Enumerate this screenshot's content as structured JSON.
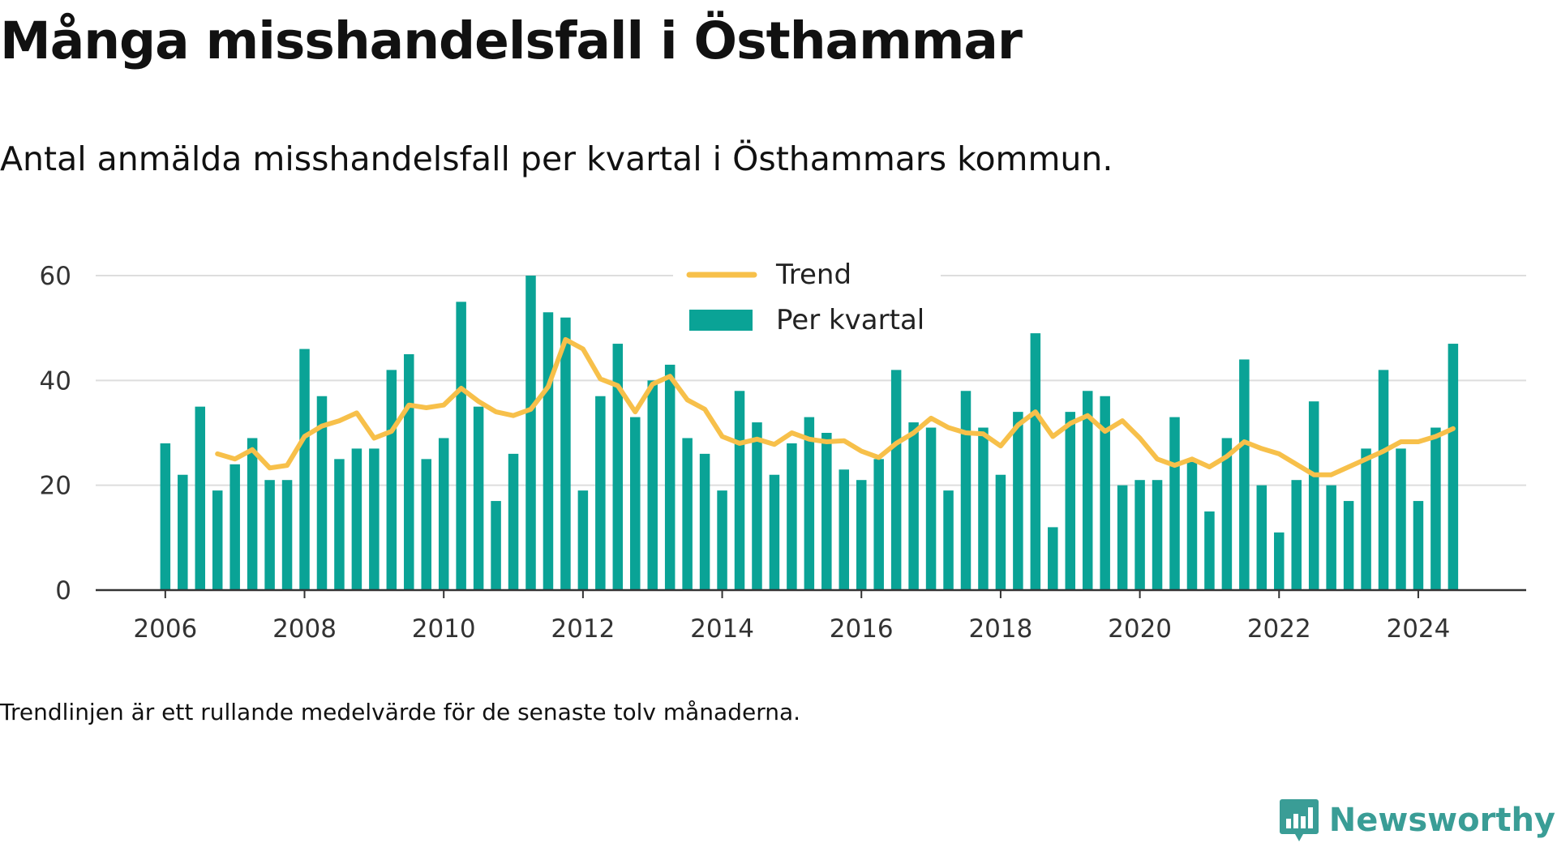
{
  "title": "Många misshandelsfall i Östhammar",
  "subtitle": "Antal anmälda misshandelsfall per kvartal i Östhammars kommun.",
  "note": "Trendlinjen är ett rullande medelvärde för de senaste tolv månaderna.",
  "brand": {
    "name": "Newsworthy",
    "icon": "newsworthy-logo-icon"
  },
  "colors": {
    "bar": "#0aa396",
    "trend": "#f7c04a",
    "grid": "#dddddd",
    "axis": "#333333",
    "brand": "#3a9d96"
  },
  "chart_data": {
    "type": "bar",
    "xlabel": "",
    "ylabel": "",
    "ylim": [
      0,
      60
    ],
    "yticks": [
      "0",
      "20",
      "40",
      "60"
    ],
    "xticks": [
      "2006",
      "2008",
      "2010",
      "2012",
      "2014",
      "2016",
      "2018",
      "2020",
      "2022",
      "2024"
    ],
    "xlim": [
      2005,
      2025.55
    ],
    "grid": true,
    "legend_position": "top-center",
    "categories": [
      "2006 Q1",
      "2006 Q2",
      "2006 Q3",
      "2006 Q4",
      "2007 Q1",
      "2007 Q2",
      "2007 Q3",
      "2007 Q4",
      "2008 Q1",
      "2008 Q2",
      "2008 Q3",
      "2008 Q4",
      "2009 Q1",
      "2009 Q2",
      "2009 Q3",
      "2009 Q4",
      "2010 Q1",
      "2010 Q2",
      "2010 Q3",
      "2010 Q4",
      "2011 Q1",
      "2011 Q2",
      "2011 Q3",
      "2011 Q4",
      "2012 Q1",
      "2012 Q2",
      "2012 Q3",
      "2012 Q4",
      "2013 Q1",
      "2013 Q2",
      "2013 Q3",
      "2013 Q4",
      "2014 Q1",
      "2014 Q2",
      "2014 Q3",
      "2014 Q4",
      "2015 Q1",
      "2015 Q2",
      "2015 Q3",
      "2015 Q4",
      "2016 Q1",
      "2016 Q2",
      "2016 Q3",
      "2016 Q4",
      "2017 Q1",
      "2017 Q2",
      "2017 Q3",
      "2017 Q4",
      "2018 Q1",
      "2018 Q2",
      "2018 Q3",
      "2018 Q4",
      "2019 Q1",
      "2019 Q2",
      "2019 Q3",
      "2019 Q4",
      "2020 Q1",
      "2020 Q2",
      "2020 Q3",
      "2020 Q4",
      "2021 Q1",
      "2021 Q2",
      "2021 Q3",
      "2021 Q4",
      "2022 Q1",
      "2022 Q2",
      "2022 Q3",
      "2022 Q4",
      "2023 Q1",
      "2023 Q2",
      "2023 Q3",
      "2023 Q4",
      "2024 Q1",
      "2024 Q2",
      "2024 Q3"
    ],
    "series": [
      {
        "name": "Per kvartal",
        "type": "bar",
        "values": [
          28,
          22,
          35,
          19,
          24,
          29,
          21,
          21,
          46,
          37,
          25,
          27,
          27,
          42,
          45,
          25,
          29,
          55,
          35,
          17,
          26,
          60,
          53,
          52,
          19,
          37,
          47,
          33,
          40,
          43,
          29,
          26,
          19,
          38,
          32,
          22,
          28,
          33,
          30,
          23,
          21,
          25,
          42,
          32,
          31,
          19,
          38,
          31,
          22,
          34,
          49,
          12,
          34,
          38,
          37,
          20,
          21,
          21,
          33,
          25,
          15,
          29,
          44,
          20,
          11,
          21,
          36,
          20,
          17,
          27,
          42,
          27,
          17,
          31,
          47
        ]
      },
      {
        "name": "Trend",
        "type": "line",
        "values": [
          null,
          null,
          null,
          26.0,
          25.0,
          26.8,
          23.3,
          23.8,
          29.3,
          31.3,
          32.3,
          33.8,
          29.0,
          30.3,
          35.3,
          34.8,
          35.3,
          38.5,
          36.0,
          34.0,
          33.3,
          34.5,
          38.8,
          47.8,
          46.0,
          40.3,
          39.0,
          34.0,
          39.3,
          40.8,
          36.3,
          34.5,
          29.3,
          28.0,
          28.8,
          27.8,
          30.0,
          28.8,
          28.3,
          28.5,
          26.5,
          25.3,
          28.0,
          30.0,
          32.8,
          31.0,
          30.0,
          29.8,
          27.5,
          31.5,
          34.0,
          29.3,
          31.8,
          33.3,
          30.3,
          32.3,
          29.0,
          25.0,
          23.8,
          25.0,
          23.5,
          25.5,
          28.3,
          27.0,
          26.0,
          24.0,
          22.0,
          22.0,
          23.5,
          25.0,
          26.5,
          28.3,
          28.3,
          29.3,
          30.8
        ]
      }
    ]
  }
}
